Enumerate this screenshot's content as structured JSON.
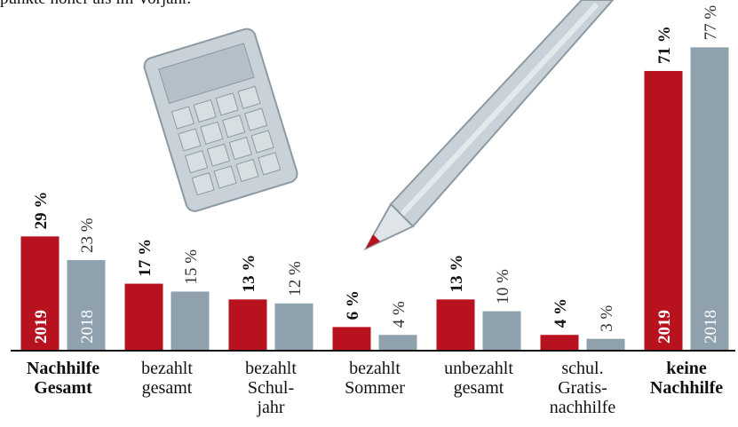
{
  "chart_data": {
    "type": "bar",
    "subtitle": "punkte höher als im Vorjahr.",
    "categories": [
      [
        "Nachhilfe",
        "Gesamt"
      ],
      [
        "bezahlt",
        "gesamt"
      ],
      [
        "bezahlt",
        "Schul-",
        "jahr"
      ],
      [
        "bezahlt",
        "Sommer"
      ],
      [
        "unbezahlt",
        "gesamt"
      ],
      [
        "schul.",
        "Gratis-",
        "nachhilfe"
      ],
      [
        "keine",
        "Nachhilfe"
      ]
    ],
    "series": [
      {
        "name": "2019",
        "color": "#b8121f",
        "values": [
          29,
          17,
          13,
          6,
          13,
          4,
          71
        ],
        "value_labels": [
          "29 %",
          "17 %",
          "13 %",
          "6 %",
          "13 %",
          "4 %",
          "71 %"
        ]
      },
      {
        "name": "2018",
        "color": "#8ea1ad",
        "values": [
          23,
          15,
          12,
          4,
          10,
          3,
          77
        ],
        "value_labels": [
          "23 %",
          "15 %",
          "12 %",
          "4 %",
          "10 %",
          "3 %",
          "77 %"
        ]
      }
    ],
    "ylim": [
      0,
      80
    ]
  }
}
